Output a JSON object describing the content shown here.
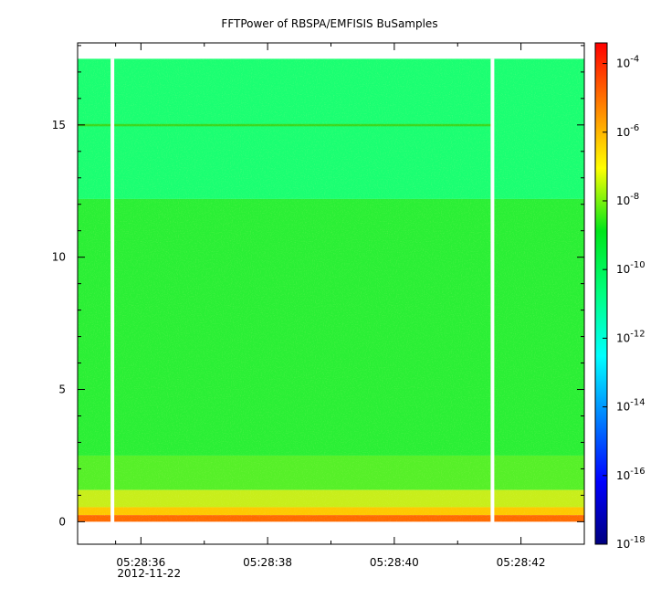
{
  "chart_data": {
    "type": "heatmap",
    "title": "FFTPower of RBSPA/EMFISIS  BuSamples",
    "xlabel": "",
    "ylabel": "",
    "x_axis": {
      "unit": "time",
      "range": [
        "05:28:35.0",
        "05:28:43.0"
      ],
      "ticks": [
        {
          "time": "05:28:36",
          "label": "05:28:36"
        },
        {
          "time": "05:28:38",
          "label": "05:28:38"
        },
        {
          "time": "05:28:40",
          "label": "05:28:40"
        },
        {
          "time": "05:28:42",
          "label": "05:28:42"
        }
      ],
      "minor_ticks": [
        "05:28:35.6",
        "05:28:37",
        "05:28:39",
        "05:28:41"
      ],
      "date_label": "2012-11-22"
    },
    "y_axis": {
      "range": [
        -0.85,
        18.1
      ],
      "ticks": [
        0,
        5,
        10,
        15
      ]
    },
    "colorbar": {
      "scale": "log",
      "range": [
        "1e-18",
        "1e-3.4"
      ],
      "ticks": [
        {
          "base": "10",
          "exp": "-4",
          "log": -4
        },
        {
          "base": "10",
          "exp": "-6",
          "log": -6
        },
        {
          "base": "10",
          "exp": "-8",
          "log": -8
        },
        {
          "base": "10",
          "exp": "-10",
          "log": -10
        },
        {
          "base": "10",
          "exp": "-12",
          "log": -12
        },
        {
          "base": "10",
          "exp": "-14",
          "log": -14
        },
        {
          "base": "10",
          "exp": "-16",
          "log": -16
        },
        {
          "base": "10",
          "exp": "-18",
          "log": -18
        }
      ],
      "colormap": [
        "#00007f",
        "#0000ff",
        "#007fff",
        "#00ffff",
        "#00ff80",
        "#00e61a",
        "#ffff00",
        "#ff8000",
        "#ff0000"
      ]
    },
    "data_gaps": [
      "05:28:35.55",
      "05:28:41.55"
    ],
    "data_end_frequency": 17.5,
    "features": [
      {
        "name": "narrowband line",
        "frequency": 15.0
      },
      {
        "name": "upper band edge",
        "frequency": 12.2
      }
    ]
  }
}
